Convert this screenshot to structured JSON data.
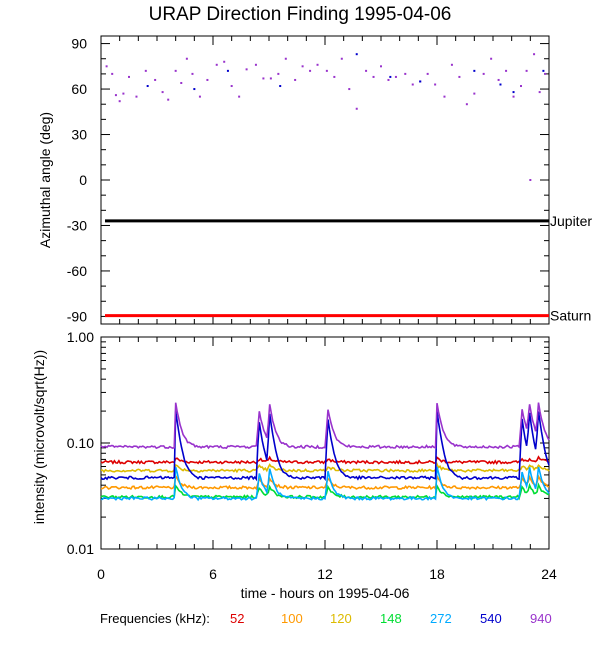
{
  "title": "URAP Direction Finding  1995-04-06",
  "chart_data": [
    {
      "type": "scatter",
      "ylabel": "Azimuthal angle (deg)",
      "xlim": [
        0,
        24
      ],
      "ylim": [
        -95,
        95
      ],
      "yticks": [
        90,
        60,
        30,
        0,
        -30,
        -60,
        -90
      ],
      "xticks": [
        0,
        6,
        12,
        18,
        24
      ],
      "reference_lines": [
        {
          "label": "Jupiter",
          "value": -27,
          "color": "#000000"
        },
        {
          "label": "Saturn",
          "value": -89.5,
          "color": "#ff0000"
        }
      ],
      "series": [
        {
          "color": "#9933cc",
          "x": [
            0.3,
            0.6,
            0.8,
            1.0,
            1.2,
            1.5,
            1.9,
            2.4,
            2.9,
            3.3,
            3.6,
            4.0,
            4.3,
            4.6,
            4.9,
            5.3,
            5.7,
            6.2,
            6.6,
            7.0,
            7.4,
            7.8,
            8.3,
            8.7,
            9.1,
            9.5,
            9.9,
            10.4,
            10.8,
            11.2,
            11.6,
            12.1,
            12.5,
            12.9,
            13.3,
            13.7,
            14.2,
            14.6,
            15.0,
            15.4,
            15.8,
            16.3,
            16.7,
            17.1,
            17.5,
            17.9,
            18.4,
            18.8,
            19.2,
            19.6,
            20.0,
            20.5,
            20.9,
            21.3,
            21.7,
            22.1,
            22.5,
            22.8,
            23.0,
            23.2,
            23.5,
            23.8
          ],
          "y": [
            75,
            70,
            56,
            52,
            57,
            68,
            55,
            72,
            66,
            58,
            53,
            72,
            64,
            80,
            70,
            55,
            66,
            76,
            78,
            62,
            55,
            73,
            76,
            67,
            67,
            70,
            80,
            66,
            75,
            72,
            76,
            72,
            68,
            80,
            60,
            47,
            72,
            68,
            75,
            66,
            68,
            70,
            63,
            65,
            70,
            63,
            55,
            76,
            68,
            50,
            57,
            70,
            80,
            66,
            72,
            55,
            62,
            72,
            0,
            83,
            58,
            70
          ]
        },
        {
          "color": "#0000cc",
          "x": [
            2.5,
            5.0,
            6.8,
            9.6,
            13.7,
            15.5,
            17.1,
            20.0,
            21.4,
            22.1,
            23.7
          ],
          "y": [
            62,
            60,
            72,
            62,
            83,
            68,
            65,
            72,
            63,
            58,
            72
          ]
        }
      ]
    },
    {
      "type": "line",
      "ylabel": "intensity (microvolt/sqrt(Hz))",
      "xlabel": "time - hours on 1995-04-06",
      "xlim": [
        0,
        24
      ],
      "ylim": [
        0.01,
        1.0
      ],
      "yscale": "log",
      "yticks": [
        "1.00",
        "0.10",
        "0.01"
      ],
      "xticks": [
        0,
        6,
        12,
        18,
        24
      ],
      "legend_title": "Frequencies (kHz):",
      "legend_placement": "bottom",
      "spikes_hours": [
        4.0,
        8.4,
        9.0,
        12.1,
        18.0,
        22.5,
        22.9,
        23.4
      ],
      "series": [
        {
          "name": "52",
          "color": "#dd0000",
          "baseline": 0.066,
          "peak": 0.072
        },
        {
          "name": "100",
          "color": "#ff9900",
          "baseline": 0.038,
          "peak": 0.048
        },
        {
          "name": "120",
          "color": "#ddbb00",
          "baseline": 0.055,
          "peak": 0.062
        },
        {
          "name": "148",
          "color": "#00dd33",
          "baseline": 0.031,
          "peak": 0.04
        },
        {
          "name": "272",
          "color": "#00aaff",
          "baseline": 0.03,
          "peak": 0.06
        },
        {
          "name": "540",
          "color": "#0000cc",
          "baseline": 0.047,
          "peak": 0.2
        },
        {
          "name": "940",
          "color": "#9933cc",
          "baseline": 0.092,
          "peak": 0.24
        }
      ]
    }
  ]
}
